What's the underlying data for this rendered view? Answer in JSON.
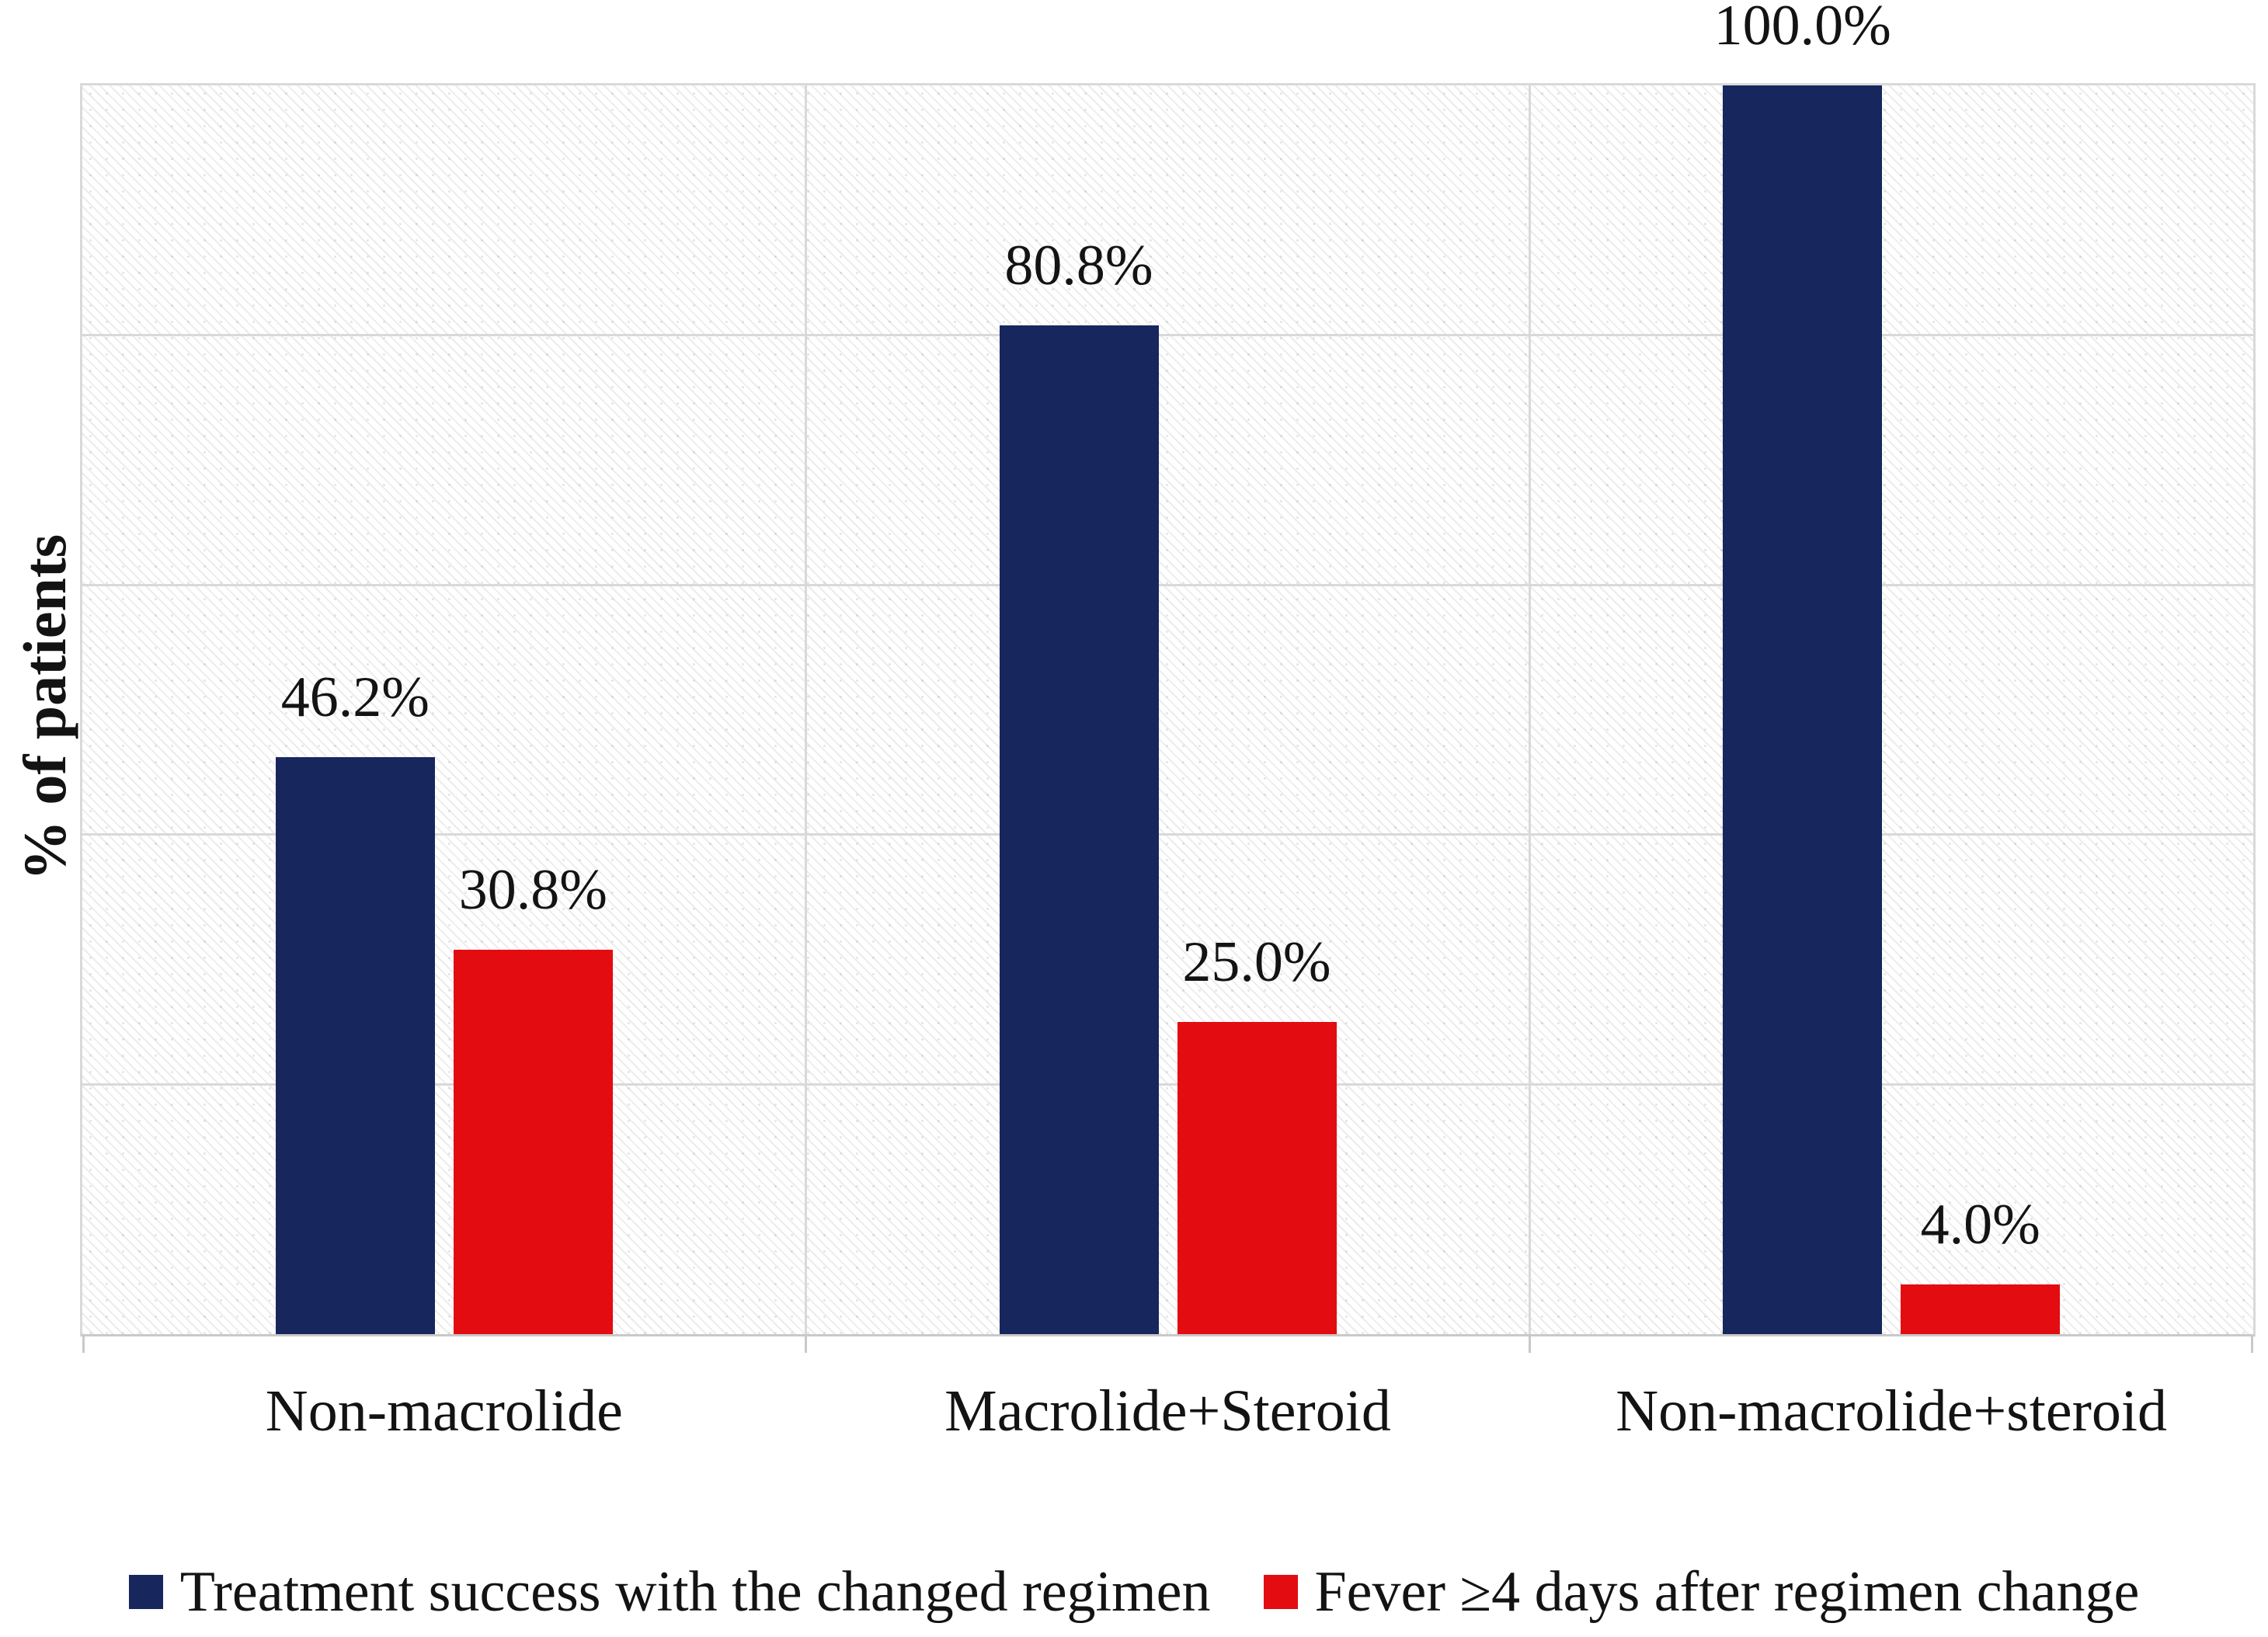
{
  "chart_data": {
    "type": "bar",
    "title": "",
    "categories": [
      "Non-macrolide",
      "Macrolide+Steroid",
      "Non-macrolide+steroid"
    ],
    "series": [
      {
        "name": "Treatment success with the changed regimen",
        "color": "#18265E",
        "values": [
          46.2,
          80.8,
          100.0
        ],
        "labels": [
          "46.2%",
          "80.8%",
          "100.0%"
        ]
      },
      {
        "name": "Fever ≥4 days after regimen change",
        "color": "#E30C10",
        "values": [
          30.8,
          25.0,
          4.0
        ],
        "labels": [
          "30.8%",
          "25.0%",
          "4.0%"
        ]
      }
    ],
    "ylabel": "% of patients",
    "xlabel": "",
    "ylim": [
      0,
      100
    ],
    "grid": {
      "horizontal_step_percent": 20,
      "vertical_category_separators": true,
      "numeric_axis_labels_shown": false
    },
    "legend_position": "bottom",
    "plot_style": "light-diagonal-hatch"
  },
  "colors": {
    "gridline": "#D9D9D9",
    "axis_line": "#C9C9C9",
    "text": "#131313",
    "background": "#FFFFFF"
  }
}
